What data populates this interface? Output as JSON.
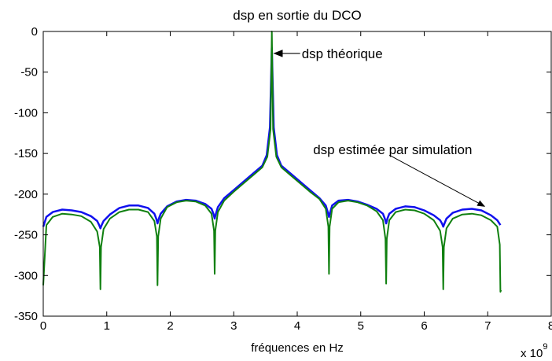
{
  "chart_data": {
    "type": "line",
    "title": "dsp en sortie du DCO",
    "xlabel": "fréquences en Hz",
    "ylabel": "",
    "x_multiplier": "x 10",
    "x_multiplier_exp": "9",
    "xlim": [
      0,
      8
    ],
    "ylim": [
      -350,
      0
    ],
    "xticks": [
      0,
      1,
      2,
      3,
      4,
      5,
      6,
      7,
      8
    ],
    "yticks": [
      0,
      -50,
      -100,
      -150,
      -200,
      -250,
      -300,
      -350
    ],
    "grid": false,
    "series": [
      {
        "color": "#1010ee",
        "x": [
          0.0,
          0.05,
          0.15,
          0.3,
          0.45,
          0.6,
          0.75,
          0.85,
          0.88,
          0.9,
          0.92,
          0.95,
          1.05,
          1.2,
          1.35,
          1.5,
          1.65,
          1.75,
          1.78,
          1.8,
          1.82,
          1.85,
          1.95,
          2.1,
          2.25,
          2.4,
          2.55,
          2.65,
          2.68,
          2.7,
          2.72,
          2.75,
          2.85,
          3.0,
          3.15,
          3.3,
          3.45,
          3.52,
          3.57,
          3.6,
          3.63,
          3.68,
          3.75,
          3.9,
          4.05,
          4.2,
          4.35,
          4.45,
          4.48,
          4.5,
          4.52,
          4.55,
          4.65,
          4.8,
          4.95,
          5.1,
          5.25,
          5.35,
          5.38,
          5.4,
          5.42,
          5.45,
          5.55,
          5.7,
          5.85,
          6.0,
          6.15,
          6.25,
          6.28,
          6.3,
          6.32,
          6.35,
          6.45,
          6.6,
          6.75,
          6.9,
          7.05,
          7.15,
          7.2
        ],
        "y": [
          -240,
          -228,
          -222,
          -219,
          -220,
          -222,
          -227,
          -233,
          -238,
          -242,
          -238,
          -233,
          -225,
          -217,
          -214,
          -214,
          -217,
          -224,
          -230,
          -236,
          -230,
          -224,
          -215,
          -209,
          -207,
          -208,
          -212,
          -218,
          -224,
          -230,
          -224,
          -216,
          -205,
          -195,
          -185,
          -175,
          -165,
          -152,
          -118,
          -20,
          -118,
          -152,
          -165,
          -175,
          -185,
          -195,
          -205,
          -214,
          -222,
          -228,
          -222,
          -214,
          -208,
          -207,
          -209,
          -213,
          -218,
          -224,
          -230,
          -236,
          -230,
          -224,
          -218,
          -215,
          -216,
          -220,
          -226,
          -232,
          -236,
          -240,
          -236,
          -230,
          -223,
          -219,
          -218,
          -220,
          -226,
          -232,
          -238
        ]
      },
      {
        "color": "#108010",
        "x": [
          0.0,
          0.05,
          0.15,
          0.3,
          0.45,
          0.6,
          0.75,
          0.85,
          0.89,
          0.9,
          0.91,
          0.95,
          1.05,
          1.2,
          1.35,
          1.5,
          1.65,
          1.75,
          1.79,
          1.8,
          1.81,
          1.85,
          1.95,
          2.1,
          2.25,
          2.4,
          2.55,
          2.65,
          2.69,
          2.7,
          2.71,
          2.75,
          2.85,
          3.0,
          3.15,
          3.3,
          3.45,
          3.53,
          3.58,
          3.6,
          3.62,
          3.67,
          3.75,
          3.9,
          4.05,
          4.2,
          4.35,
          4.45,
          4.49,
          4.5,
          4.51,
          4.55,
          4.65,
          4.8,
          4.95,
          5.1,
          5.25,
          5.35,
          5.39,
          5.4,
          5.41,
          5.45,
          5.55,
          5.7,
          5.85,
          6.0,
          6.15,
          6.25,
          6.29,
          6.3,
          6.31,
          6.35,
          6.45,
          6.6,
          6.75,
          6.9,
          7.05,
          7.15,
          7.19,
          7.2,
          7.21
        ],
        "y": [
          -312,
          -238,
          -228,
          -224,
          -225,
          -227,
          -234,
          -246,
          -265,
          -317,
          -265,
          -243,
          -230,
          -222,
          -219,
          -219,
          -222,
          -233,
          -252,
          -312,
          -252,
          -230,
          -216,
          -210,
          -208,
          -209,
          -214,
          -224,
          -245,
          -298,
          -245,
          -222,
          -208,
          -197,
          -187,
          -177,
          -167,
          -154,
          -120,
          0,
          -120,
          -154,
          -167,
          -177,
          -187,
          -197,
          -206,
          -218,
          -240,
          -298,
          -240,
          -218,
          -210,
          -208,
          -210,
          -214,
          -221,
          -232,
          -255,
          -310,
          -255,
          -232,
          -222,
          -219,
          -220,
          -224,
          -232,
          -245,
          -265,
          -317,
          -265,
          -242,
          -230,
          -225,
          -224,
          -226,
          -232,
          -240,
          -262,
          -320,
          -318
        ]
      }
    ],
    "annotations": [
      {
        "text": "dsp théorique",
        "target_x": 3.6,
        "target_y": -27
      },
      {
        "text": "dsp estimée par simulation",
        "target_x": 6.95,
        "target_y": -215
      }
    ]
  }
}
